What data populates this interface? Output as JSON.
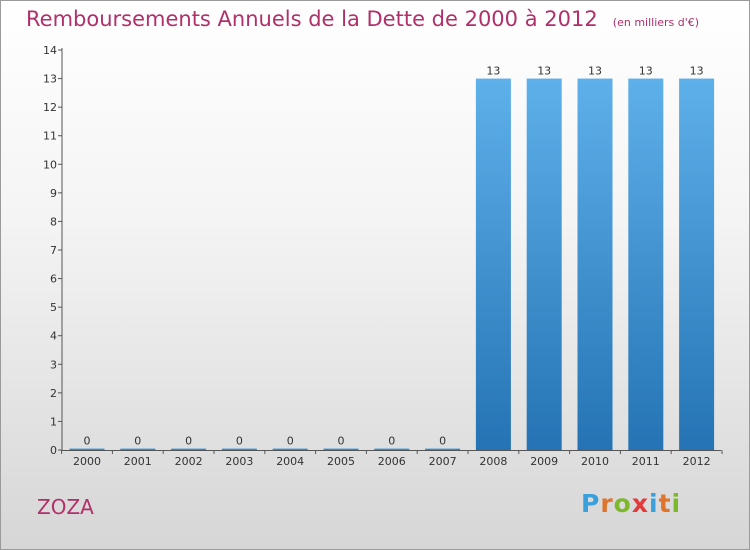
{
  "header": {
    "title": "Remboursements Annuels de la Dette de 2000 à 2012",
    "unit": "(en milliers d'€)"
  },
  "commune": "ZOZA",
  "logo": {
    "letters": [
      "P",
      "r",
      "o",
      "x",
      "i",
      "t",
      "i"
    ],
    "colors": [
      "#3aa0dc",
      "#e0742a",
      "#7cb82a",
      "#e23a3a",
      "#3aa0dc",
      "#e0742a",
      "#7cb82a"
    ]
  },
  "chart_data": {
    "type": "bar",
    "title": "Remboursements Annuels de la Dette de 2000 à 2012",
    "categories": [
      "2000",
      "2001",
      "2002",
      "2003",
      "2004",
      "2005",
      "2006",
      "2007",
      "2008",
      "2009",
      "2010",
      "2011",
      "2012"
    ],
    "values": [
      0,
      0,
      0,
      0,
      0,
      0,
      0,
      0,
      13,
      13,
      13,
      13,
      13
    ],
    "data_labels": [
      "0",
      "0",
      "0",
      "0",
      "0",
      "0",
      "0",
      "0",
      "13",
      "13",
      "13",
      "13",
      "13"
    ],
    "y_ticks": [
      "0",
      "1",
      "2",
      "3",
      "4",
      "5",
      "6",
      "7",
      "8",
      "9",
      "10",
      "11",
      "12",
      "13",
      "14"
    ],
    "ylim": [
      0,
      14
    ],
    "xlabel": "",
    "ylabel": "",
    "bar_color": "#3f97d8",
    "grid": false
  }
}
